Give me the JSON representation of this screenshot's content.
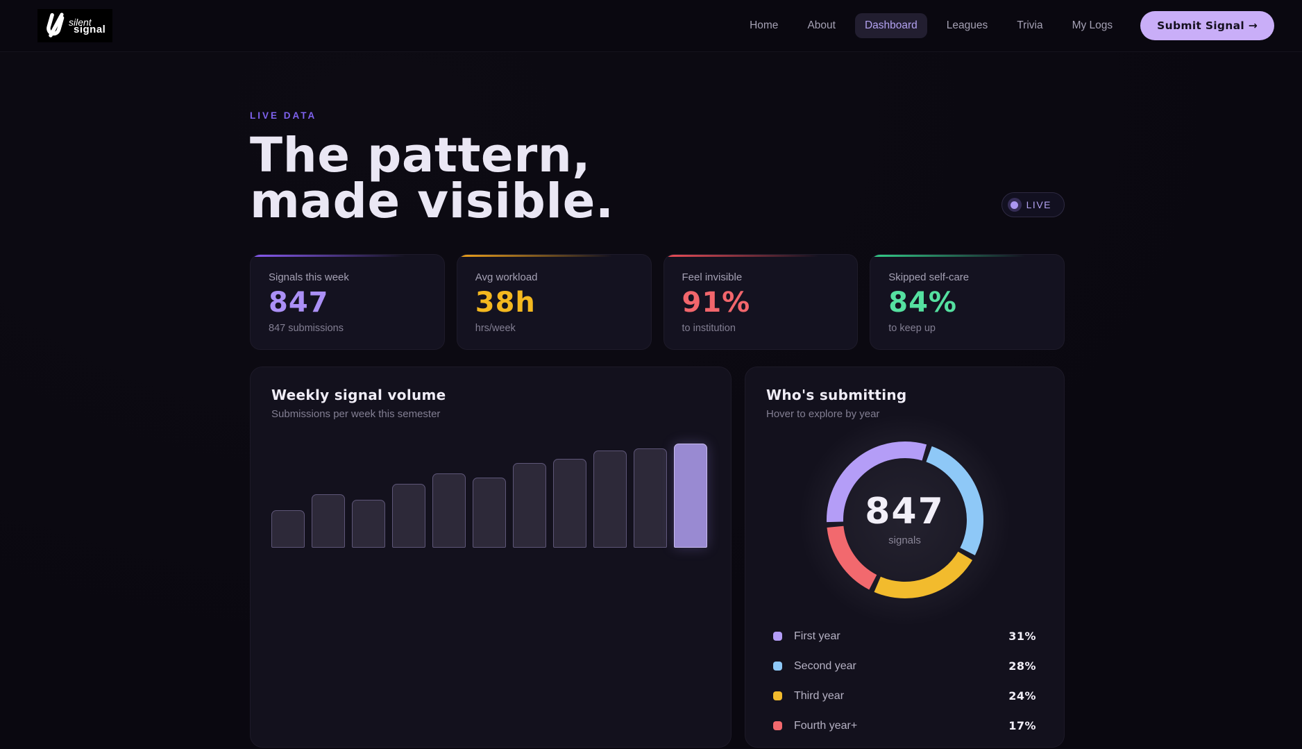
{
  "brand": {
    "word1": "silent",
    "word2": "signal"
  },
  "nav": {
    "items": [
      {
        "label": "Home",
        "active": false
      },
      {
        "label": "About",
        "active": false
      },
      {
        "label": "Dashboard",
        "active": true
      },
      {
        "label": "Leagues",
        "active": false
      },
      {
        "label": "Trivia",
        "active": false
      },
      {
        "label": "My Logs",
        "active": false
      }
    ],
    "cta_label": "Submit Signal →"
  },
  "hero": {
    "eyebrow": "LIVE DATA",
    "title_line1": "The pattern,",
    "title_line2": "made visible.",
    "live_badge": "LIVE"
  },
  "stats": {
    "cards": [
      {
        "label": "Signals this week",
        "value": "847",
        "sub": "847 submissions",
        "value_color": "#ab90f6",
        "accent": "#8b5cf6"
      },
      {
        "label": "Avg workload",
        "value": "38h",
        "sub": "hrs/week",
        "value_color": "#f4b81f",
        "accent": "#f0a31c"
      },
      {
        "label": "Feel invisible",
        "value": "91%",
        "sub": "to institution",
        "value_color": "#f2666c",
        "accent": "#ef4e58"
      },
      {
        "label": "Skipped self-care",
        "value": "84%",
        "sub": "to keep up",
        "value_color": "#55e0a0",
        "accent": "#34d28b"
      }
    ]
  },
  "bar_section": {
    "title": "Weekly signal volume",
    "subtitle": "Submissions per week this semester"
  },
  "donut_section": {
    "title": "Who's submitting",
    "subtitle": "Hover to explore by year",
    "center_value": "847",
    "center_label": "signals"
  },
  "colors": {
    "accent_purple": "#8b5cf6",
    "cta_bg": "#c9aef8",
    "page_bg": "#0a0810",
    "card_bg": "#13111d"
  },
  "chart_data": [
    {
      "type": "bar",
      "title": "Weekly signal volume",
      "subtitle": "Submissions per week this semester",
      "num_bars": 11,
      "values": [
        36,
        51,
        46,
        61,
        71,
        67,
        81,
        85,
        93,
        95,
        100
      ],
      "highlight_index": 10,
      "bar_color": "#2d2939",
      "bar_border": "#5e5678",
      "highlight_color": "#998ad2",
      "highlight_border": "#c9bcf2",
      "x_tick_labels_shown": false,
      "y_axis_shown": false
    },
    {
      "type": "donut",
      "title": "Who's submitting",
      "total": 847,
      "center_label": "signals",
      "legend_position": "below",
      "segments": [
        {
          "label": "First year",
          "value": 31,
          "color": "#b49df7"
        },
        {
          "label": "Second year",
          "value": 28,
          "color": "#8ec8f7"
        },
        {
          "label": "Third year",
          "value": 24,
          "color": "#f2bb2d"
        },
        {
          "label": "Fourth year+",
          "value": 17,
          "color": "#f2696e"
        }
      ]
    }
  ]
}
